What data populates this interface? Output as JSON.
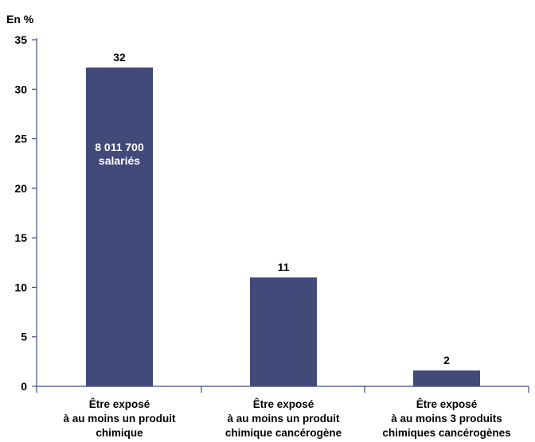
{
  "chart_data": {
    "type": "bar",
    "unit_label": "En %",
    "categories": [
      [
        "Être exposé",
        "à au moins un produit",
        "chimique"
      ],
      [
        "Être exposé",
        "à au moins un produit",
        "chimique cancérogène"
      ],
      [
        "Être exposé",
        "à au moins 3 produits",
        "chimiques cancérogènes"
      ]
    ],
    "values": [
      32,
      11,
      2
    ],
    "value_labels": [
      "32",
      "11",
      "2"
    ],
    "bar_values_plotted": [
      32.2,
      11.0,
      1.6
    ],
    "inner_label": [
      "8 011 700",
      "salariés"
    ],
    "ylim": [
      0,
      35
    ],
    "yticks": [
      0,
      5,
      10,
      15,
      20,
      25,
      30,
      35
    ],
    "grid": false,
    "bar_color": "#424a7a"
  }
}
